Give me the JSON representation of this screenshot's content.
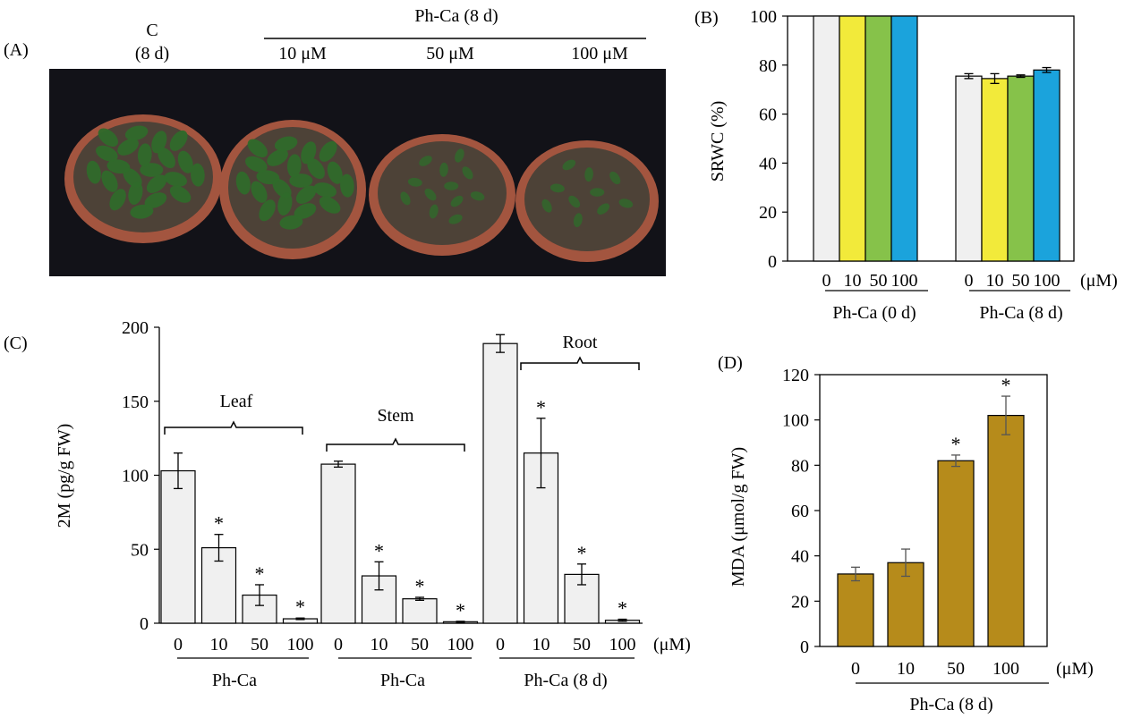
{
  "colors": {
    "bar_grey": "#f0f0f0",
    "bar_yellow": "#f2ea3a",
    "bar_green": "#86c24a",
    "bar_blue": "#1ba3dc",
    "bar_gold": "#b68b1b",
    "photo_bg": "#121218",
    "pot": "#a3553f",
    "soil": "#4d4237",
    "leaf": "#2f6a2a"
  },
  "panel_a": {
    "label": "(A)",
    "control_line1": "C",
    "control_line2": "(8 d)",
    "group_title": "Ph-Ca (8 d)",
    "conc": [
      "10 μM",
      "50 μM",
      "100 μM"
    ]
  },
  "chart_data": [
    {
      "panel": "(B)",
      "type": "bar",
      "ylabel": "SRWC (%)",
      "ylim": [
        0,
        100
      ],
      "yticks": [
        "0",
        "20",
        "40",
        "60",
        "80",
        "100"
      ],
      "unit": "(μM)",
      "groups": [
        {
          "name": "Ph-Ca (0 d)",
          "categories": [
            "0",
            "10",
            "50",
            "100"
          ],
          "values": [
            100,
            100,
            100,
            100
          ],
          "errors": [
            0,
            0,
            0,
            0
          ],
          "stars": [
            "",
            "",
            "",
            ""
          ]
        },
        {
          "name": "Ph-Ca (8 d)",
          "categories": [
            "0",
            "10",
            "50",
            "100"
          ],
          "values": [
            75.5,
            74.5,
            75.5,
            78
          ],
          "errors": [
            1,
            2,
            0.5,
            1
          ],
          "stars": [
            "",
            "",
            "",
            ""
          ]
        }
      ],
      "bar_colors": [
        "#f0f0f0",
        "#f2ea3a",
        "#86c24a",
        "#1ba3dc"
      ],
      "grid": false
    },
    {
      "panel": "(C)",
      "type": "bar",
      "ylabel": "2M (pg/g FW)",
      "ylim": [
        0,
        200
      ],
      "yticks": [
        "0",
        "50",
        "100",
        "150",
        "200"
      ],
      "unit": "(μM)",
      "groups": [
        {
          "name": "Ph-Ca",
          "organ": "Leaf",
          "categories": [
            "0",
            "10",
            "50",
            "100"
          ],
          "values": [
            103,
            51,
            19,
            3
          ],
          "errors": [
            12,
            9,
            7,
            0.5
          ],
          "stars": [
            "",
            "*",
            "*",
            "*"
          ]
        },
        {
          "name": "Ph-Ca",
          "organ": "Stem",
          "categories": [
            "0",
            "10",
            "50",
            "100"
          ],
          "values": [
            107.5,
            32,
            16.5,
            1
          ],
          "errors": [
            2,
            9.5,
            1,
            0.3
          ],
          "stars": [
            "",
            "*",
            "*",
            "*"
          ]
        },
        {
          "name": "Ph-Ca (8 d)",
          "organ": "Root",
          "categories": [
            "0",
            "10",
            "50",
            "100"
          ],
          "values": [
            189,
            115,
            33,
            2
          ],
          "errors": [
            6,
            23.5,
            7,
            0.7
          ],
          "stars": [
            "",
            "*",
            "*",
            "*"
          ]
        }
      ],
      "bar_colors": [
        "#f0f0f0"
      ],
      "grid": false
    },
    {
      "panel": "(D)",
      "type": "bar",
      "ylabel": "MDA (μmol/g FW)",
      "ylim": [
        0,
        120
      ],
      "yticks": [
        "0",
        "20",
        "40",
        "60",
        "80",
        "100",
        "120"
      ],
      "unit": "(μM)",
      "groups": [
        {
          "name": "Ph-Ca (8 d)",
          "categories": [
            "0",
            "10",
            "50",
            "100"
          ],
          "values": [
            32,
            37,
            82,
            102
          ],
          "errors": [
            3,
            6,
            2.5,
            8.5
          ],
          "stars": [
            "",
            "",
            "*",
            "*"
          ]
        }
      ],
      "bar_colors": [
        "#b68b1b"
      ],
      "grid": false
    }
  ]
}
